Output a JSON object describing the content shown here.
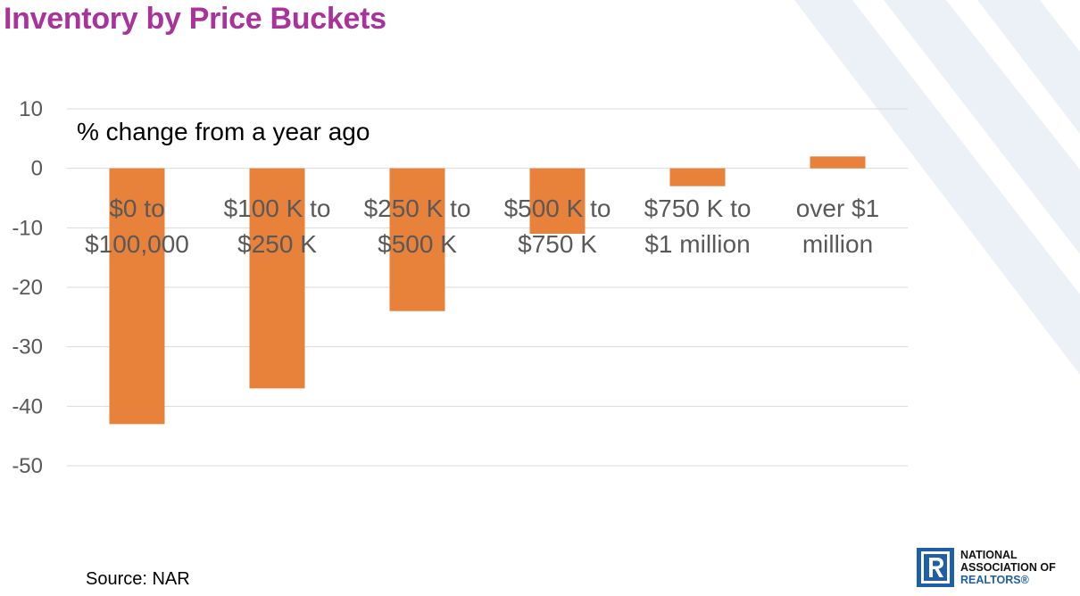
{
  "slide": {
    "title": "Inventory by Price Buckets",
    "source": "Source: NAR",
    "colors": {
      "title": "#a8339a",
      "bar": "#e8813a",
      "grid": "#d9d9d9",
      "tick_text": "#595959",
      "category_text": "#595959",
      "decoration": "#dbe5f1"
    }
  },
  "logo": {
    "line1": "NATIONAL",
    "line2": "ASSOCIATION OF",
    "line3": "REALTORS®",
    "mark_icon": "realtor-r-logo-icon",
    "mark_color": "#1f5fa8"
  },
  "chart_data": {
    "type": "bar",
    "subtitle": "% change from a year ago",
    "categories": [
      [
        "$0 to",
        "$100,000"
      ],
      [
        "$100 K to",
        "$250 K"
      ],
      [
        "$250 K to",
        "$500 K"
      ],
      [
        "$500 K to",
        "$750 K"
      ],
      [
        "$750 K to",
        "$1 million"
      ],
      [
        "over $1",
        "million"
      ]
    ],
    "values": [
      -43,
      -37,
      -24,
      -11,
      -3,
      2
    ],
    "ylim": [
      -50,
      10
    ],
    "yticks": [
      10,
      0,
      -10,
      -20,
      -30,
      -40,
      -50
    ],
    "grid": true,
    "legend": "none"
  }
}
